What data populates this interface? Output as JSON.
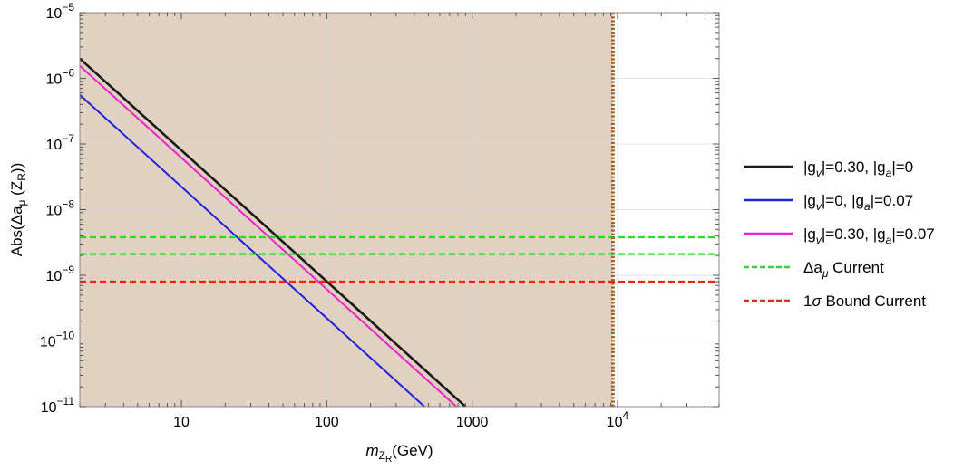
{
  "chart_data": {
    "type": "line",
    "xlabel": {
      "main": "m",
      "sub": "Z",
      "subsub": "R",
      "unit": "(GeV)"
    },
    "ylabel": {
      "prefix": "Abs(Δa",
      "sub_mu": "μ",
      "mid": " (Z",
      "sub_r": "R",
      "suffix": "))"
    },
    "x_scale": "log",
    "y_scale": "log",
    "xlim": [
      2,
      50000
    ],
    "ylim": [
      1e-11,
      1e-05
    ],
    "x_ticks": [
      {
        "value": 10,
        "label": "10"
      },
      {
        "value": 100,
        "label": "100"
      },
      {
        "value": 1000,
        "label": "1000"
      },
      {
        "value": 10000,
        "base": "10",
        "exp": "4"
      }
    ],
    "y_ticks": [
      {
        "value": 1e-05,
        "base": "10",
        "exp": "−5"
      },
      {
        "value": 1e-06,
        "base": "10",
        "exp": "−6"
      },
      {
        "value": 1e-07,
        "base": "10",
        "exp": "−7"
      },
      {
        "value": 1e-08,
        "base": "10",
        "exp": "−8"
      },
      {
        "value": 1e-09,
        "base": "10",
        "exp": "−9"
      },
      {
        "value": 1e-10,
        "base": "10",
        "exp": "−10"
      },
      {
        "value": 1e-11,
        "base": "10",
        "exp": "−11"
      }
    ],
    "shaded_region": {
      "x_from": 2,
      "x_to": 9300,
      "color": "#e0d1c1"
    },
    "vertical_line": {
      "x": 9300,
      "color": "#a0642a",
      "style": "dotted"
    },
    "series": [
      {
        "legend": {
          "a1": "|g",
          "s1": "v",
          "a2": "|=0.30, |g",
          "s2": "a",
          "a3": "|=0"
        },
        "color": "#1a1a1a",
        "x": [
          2,
          900
        ],
        "y": [
          2e-06,
          1e-11
        ],
        "style": "solid"
      },
      {
        "legend": {
          "a1": "|g",
          "s1": "v",
          "a2": "|=0, |g",
          "s2": "a",
          "a3": "|=0.07"
        },
        "color": "#2222dd",
        "x": [
          2,
          470
        ],
        "y": [
          5.6e-07,
          1e-11
        ],
        "style": "solid"
      },
      {
        "legend": {
          "a1": "|g",
          "s1": "v",
          "a2": "|=0.30, |g",
          "s2": "a",
          "a3": "|=0.07"
        },
        "color": "#ee22cc",
        "x": [
          2,
          780
        ],
        "y": [
          1.55e-06,
          1e-11
        ],
        "style": "solid"
      },
      {
        "legend": {
          "a1": "Δa",
          "s1": "μ",
          "a2": " Current",
          "s2": "",
          "a3": ""
        },
        "color": "#22dd22",
        "hlines": [
          3.8e-09,
          2.1e-09
        ],
        "style": "dashed"
      },
      {
        "legend": {
          "a1": "1",
          "greek": "σ",
          "a2": " Bound Current",
          "s2": "",
          "a3": ""
        },
        "color": "#ee2211",
        "hlines": [
          8e-10
        ],
        "style": "dashed"
      }
    ]
  }
}
